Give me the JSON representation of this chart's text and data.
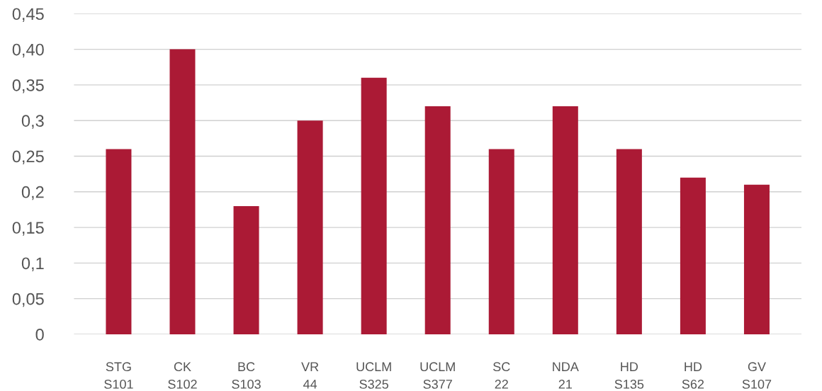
{
  "chart_data": {
    "type": "bar",
    "categories": [
      "STG\nS101",
      "CK\nS102",
      "BC\nS103",
      "VR\n44",
      "UCLM\nS325",
      "UCLM\nS377",
      "SC\n22",
      "NDA\n21",
      "HD\nS135",
      "HD\nS62",
      "GV\nS107"
    ],
    "values": [
      0.26,
      0.4,
      0.18,
      0.3,
      0.36,
      0.32,
      0.26,
      0.32,
      0.26,
      0.22,
      0.21
    ],
    "color": "#ab1a35",
    "ylim": [
      0,
      0.45
    ],
    "yticks": [
      {
        "value": 0,
        "label": "0"
      },
      {
        "value": 0.05,
        "label": "0,05"
      },
      {
        "value": 0.1,
        "label": "0,1"
      },
      {
        "value": 0.15,
        "label": "0,15"
      },
      {
        "value": 0.2,
        "label": "0,2"
      },
      {
        "value": 0.25,
        "label": "0,25"
      },
      {
        "value": 0.3,
        "label": "0,3"
      },
      {
        "value": 0.35,
        "label": "0,35"
      },
      {
        "value": 0.4,
        "label": "0,40"
      },
      {
        "value": 0.45,
        "label": "0,45"
      }
    ],
    "grid": "y"
  }
}
